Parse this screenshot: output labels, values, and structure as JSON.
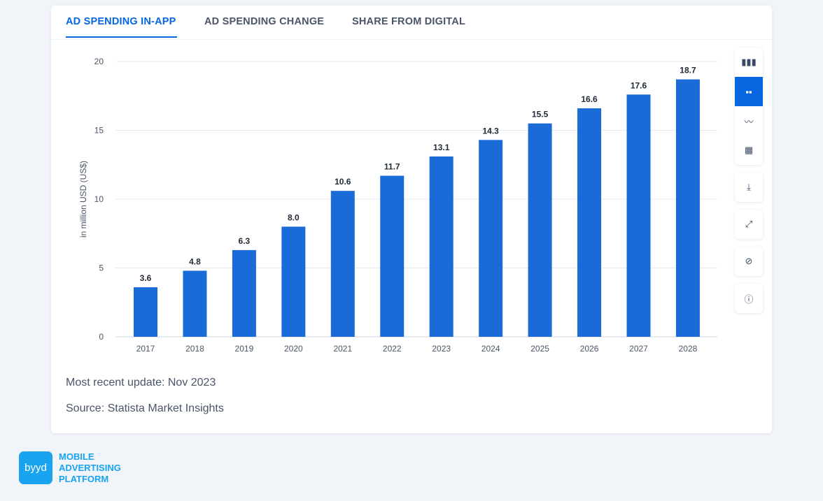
{
  "tabs": [
    {
      "label": "AD SPENDING IN-APP"
    },
    {
      "label": "AD SPENDING CHANGE"
    },
    {
      "label": "SHARE FROM DIGITAL"
    }
  ],
  "meta": {
    "update": "Most recent update: Nov 2023",
    "source": "Source: Statista Market Insights"
  },
  "tools": [
    "bar-chart-icon",
    "column-chart-icon",
    "line-chart-icon",
    "table-icon",
    "download-icon",
    "expand-icon",
    "hide-icon",
    "info-icon"
  ],
  "brand": {
    "logo": "byyd",
    "line1": "MOBILE",
    "line2": "ADVERTISING",
    "line3": "PLATFORM"
  },
  "colors": {
    "bar": "#1a6bd8",
    "accent": "#0666e0",
    "brand": "#1aa3ef"
  },
  "chart_data": {
    "type": "bar",
    "categories": [
      "2017",
      "2018",
      "2019",
      "2020",
      "2021",
      "2022",
      "2023",
      "2024",
      "2025",
      "2026",
      "2027",
      "2028"
    ],
    "values": [
      3.6,
      4.8,
      6.3,
      8.0,
      10.6,
      11.7,
      13.1,
      14.3,
      15.5,
      16.6,
      17.6,
      18.7
    ],
    "labels": [
      "3.6",
      "4.8",
      "6.3",
      "8.0",
      "10.6",
      "11.7",
      "13.1",
      "14.3",
      "15.5",
      "16.6",
      "17.6",
      "18.7"
    ],
    "ylabel": "in million USD (US$)",
    "yticks": [
      0,
      5,
      10,
      15,
      20
    ],
    "ylim": [
      0,
      20
    ],
    "grid": true
  }
}
